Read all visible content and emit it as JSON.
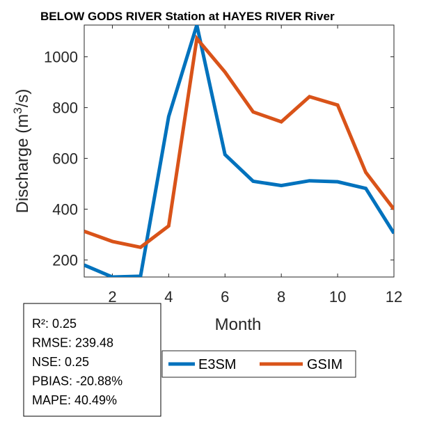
{
  "chart_data": {
    "type": "line",
    "title": "BELOW GODS RIVER  Station at  HAYES RIVER  River",
    "xlabel": "Month",
    "ylabel_main": "Discharge (m",
    "ylabel_sup": "3",
    "ylabel_tail": "/s)",
    "xlim": [
      1,
      12
    ],
    "ylim": [
      133,
      1125
    ],
    "x_ticks": [
      2,
      4,
      6,
      8,
      10,
      12
    ],
    "y_ticks": [
      200,
      400,
      600,
      800,
      1000
    ],
    "x": [
      1,
      2,
      3,
      4,
      5,
      6,
      7,
      8,
      9,
      10,
      11,
      12
    ],
    "series": [
      {
        "name": "E3SM",
        "color": "#0072BD",
        "values": [
          180,
          133,
          136,
          765,
          1125,
          615,
          510,
          493,
          512,
          508,
          482,
          305
        ]
      },
      {
        "name": "GSIM",
        "color": "#D95319",
        "values": [
          313,
          273,
          250,
          334,
          1072,
          940,
          783,
          744,
          843,
          810,
          545,
          400
        ]
      }
    ],
    "legend_position": "below-center",
    "stats": [
      {
        "label": "R²",
        "value": "0.25"
      },
      {
        "label": "RMSE",
        "value": "239.48"
      },
      {
        "label": "NSE",
        "value": "0.25"
      },
      {
        "label": "PBIAS",
        "value": "-20.88%"
      },
      {
        "label": "MAPE",
        "value": "40.49%"
      }
    ]
  }
}
